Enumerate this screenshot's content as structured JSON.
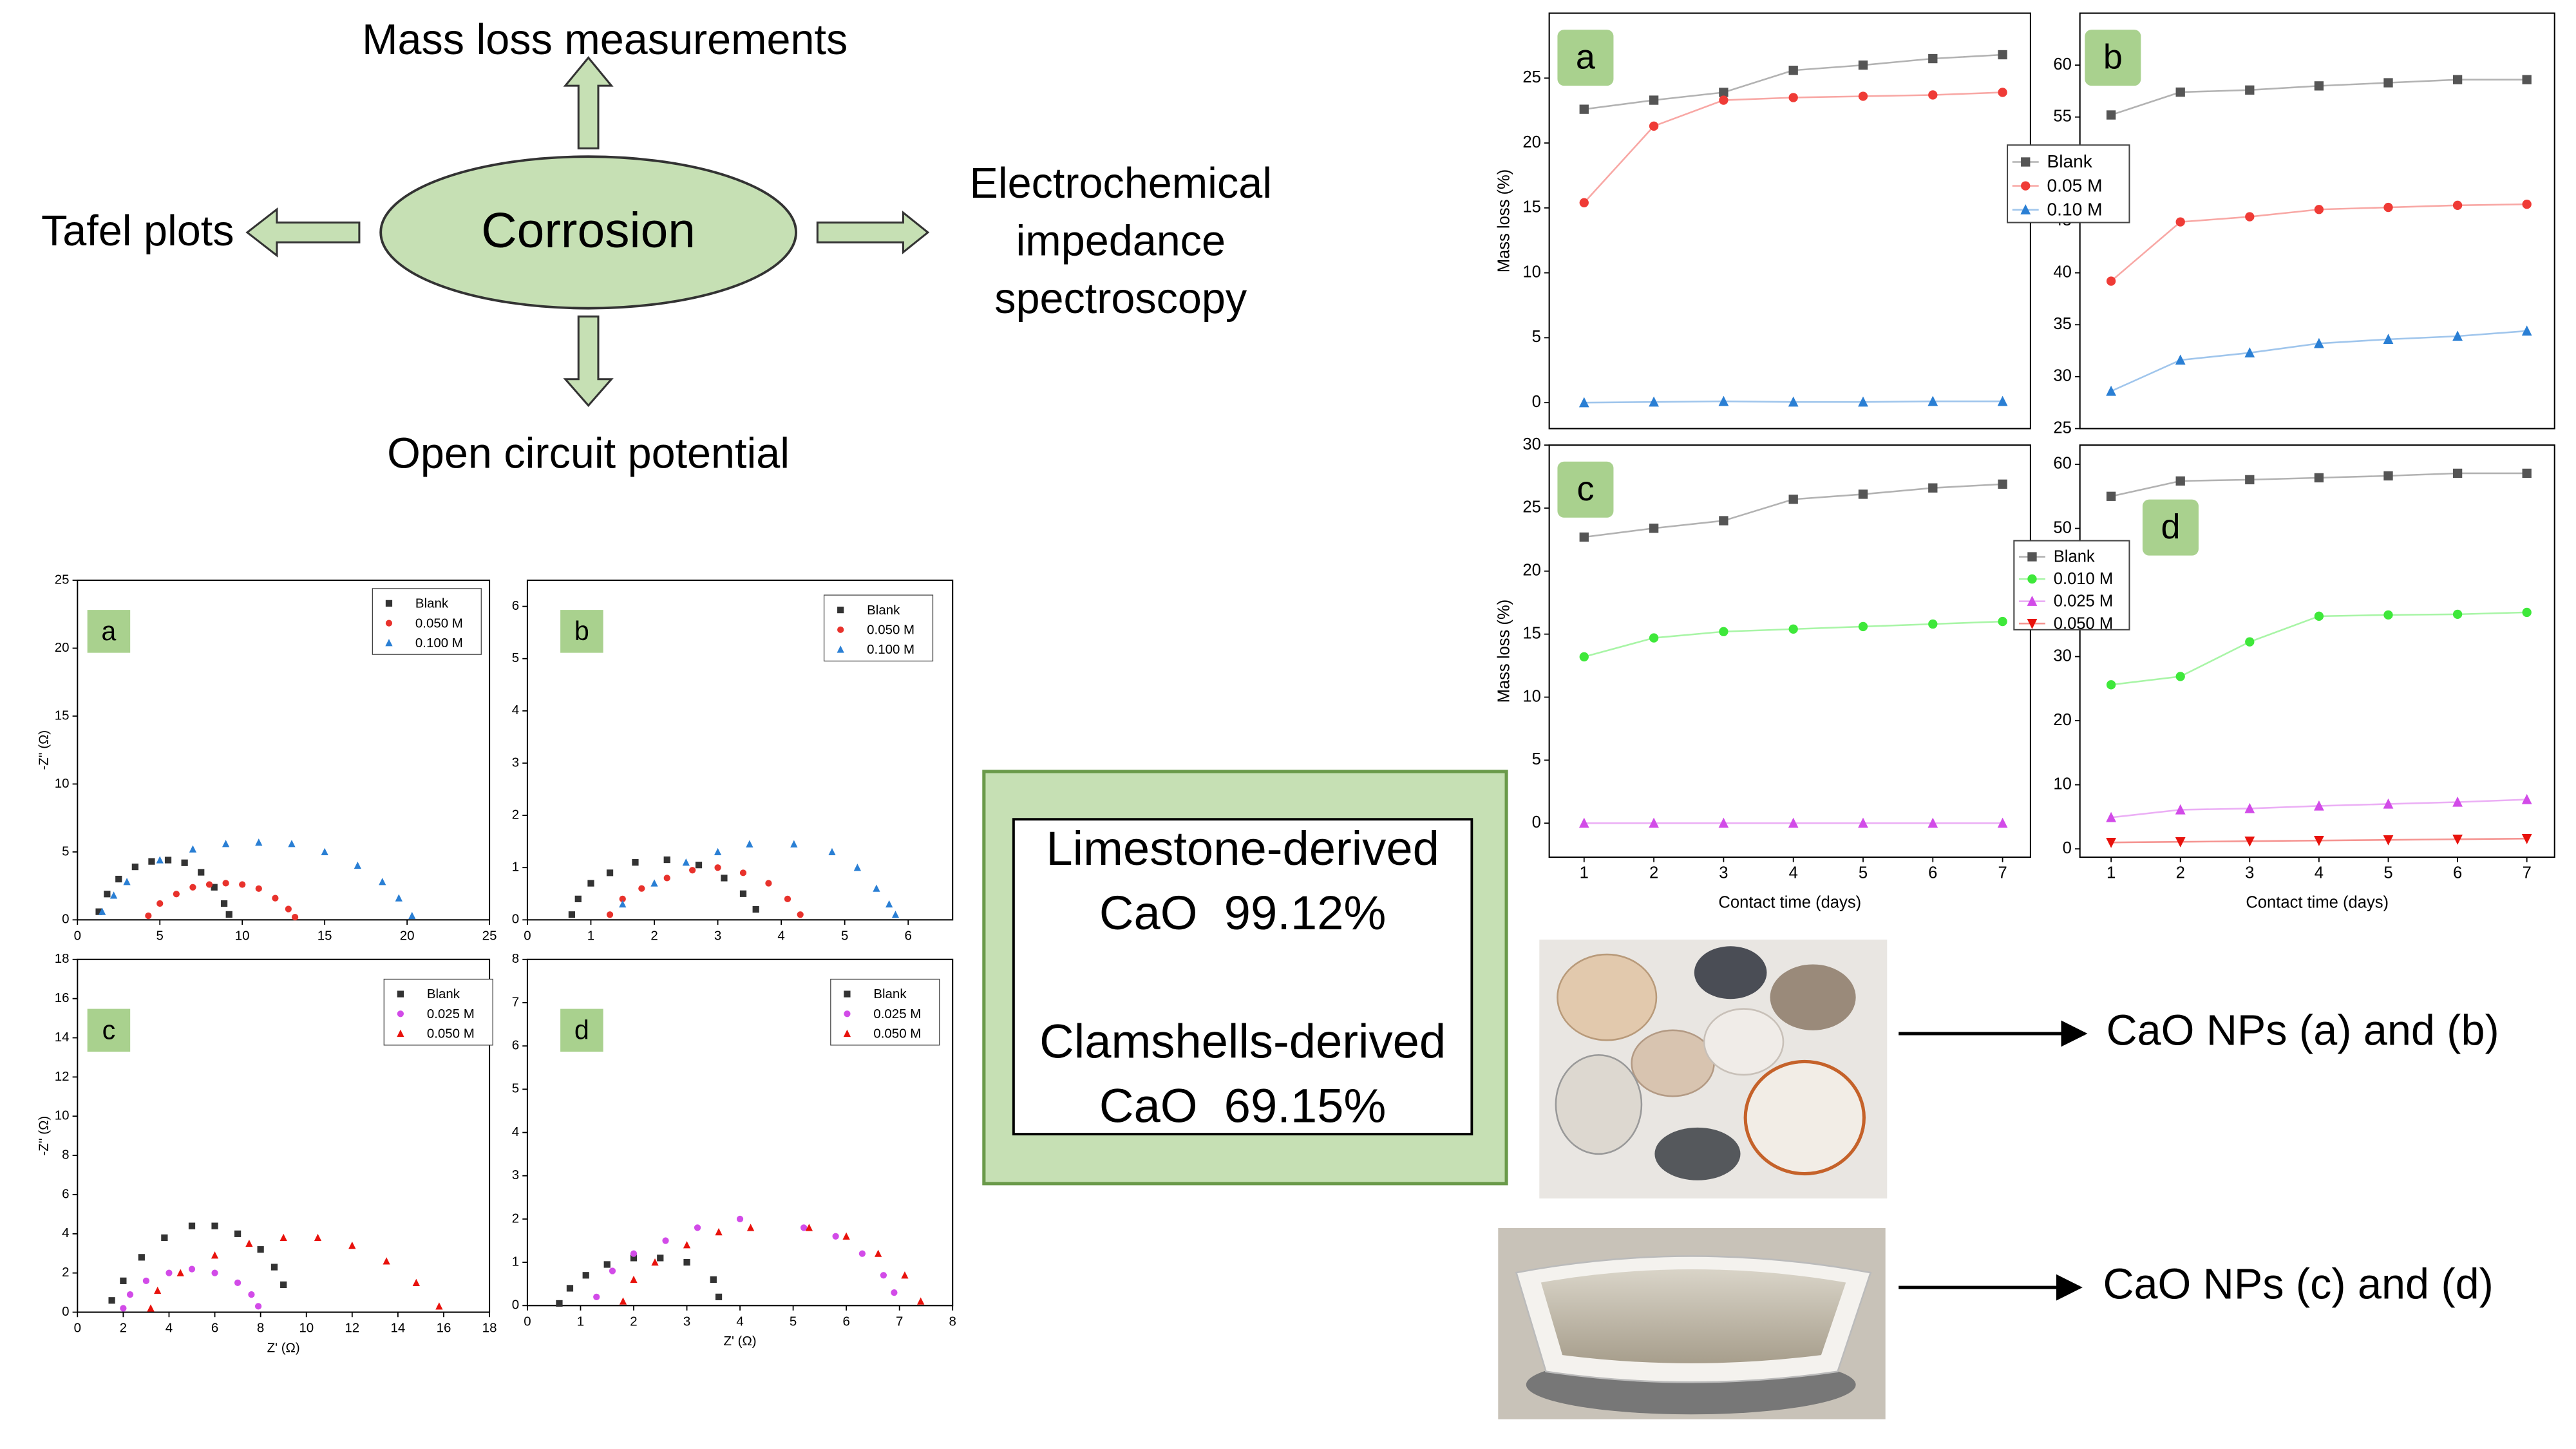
{
  "diagram": {
    "top": "Mass loss measurements",
    "center": "Corrosion",
    "left": "Tafel plots",
    "right": [
      "Electrochemical",
      "impedance",
      "spectroscopy"
    ],
    "bottom": "Open circuit potential"
  },
  "box": {
    "lines": [
      "Limestone-derived",
      "CaO  99.12%",
      "Clamshells-derived",
      "CaO  69.15%"
    ]
  },
  "photos": {
    "outputs": [
      "CaO NPs (a) and (b)",
      "CaO NPs (c) and (d)"
    ]
  },
  "chart_data": [
    {
      "type": "scatter",
      "panel_label": "a",
      "ylabel": "-Z'' (Ω)",
      "xlim": [
        0,
        25
      ],
      "xticks": [
        0,
        5,
        10,
        15,
        20,
        25
      ],
      "ylim": [
        0,
        25
      ],
      "yticks": [
        0,
        5,
        10,
        15,
        20,
        25
      ],
      "legend": "upper right",
      "series": [
        {
          "name": "Blank",
          "color": "#333333",
          "marker": "square",
          "x": [
            1.3,
            1.8,
            2.5,
            3.5,
            4.5,
            5.5,
            6.5,
            7.5,
            8.3,
            8.9,
            9.2
          ],
          "values": [
            0.6,
            1.9,
            3.0,
            3.9,
            4.3,
            4.4,
            4.2,
            3.5,
            2.4,
            1.2,
            0.4
          ]
        },
        {
          "name": "0.050 M",
          "color": "#e8322c",
          "marker": "circle",
          "x": [
            4.3,
            5,
            6,
            7,
            8,
            9,
            10,
            11,
            12,
            12.8,
            13.2
          ],
          "values": [
            0.3,
            1.2,
            1.9,
            2.4,
            2.6,
            2.7,
            2.6,
            2.3,
            1.6,
            0.8,
            0.2
          ]
        },
        {
          "name": "0.100 M",
          "color": "#2a7fd4",
          "marker": "triangle",
          "x": [
            1.5,
            2.2,
            3,
            5,
            7,
            9,
            11,
            13,
            15,
            17,
            18.5,
            19.5,
            20.3
          ],
          "values": [
            0.6,
            1.8,
            2.8,
            4.4,
            5.2,
            5.6,
            5.7,
            5.6,
            5.0,
            4.0,
            2.8,
            1.6,
            0.3
          ]
        }
      ]
    },
    {
      "type": "scatter",
      "panel_label": "b",
      "xlim": [
        0,
        6.7
      ],
      "xticks": [
        0,
        1,
        2,
        3,
        4,
        5,
        6
      ],
      "ylim": [
        0,
        6.5
      ],
      "yticks": [
        0,
        1,
        2,
        3,
        4,
        5,
        6
      ],
      "legend": "upper right",
      "series": [
        {
          "name": "Blank",
          "color": "#333333",
          "marker": "square",
          "x": [
            0.7,
            0.8,
            1,
            1.3,
            1.7,
            2.2,
            2.7,
            3.1,
            3.4,
            3.6
          ],
          "values": [
            0.1,
            0.4,
            0.7,
            0.9,
            1.1,
            1.15,
            1.05,
            0.8,
            0.5,
            0.2
          ]
        },
        {
          "name": "0.050 M",
          "color": "#e8322c",
          "marker": "circle",
          "x": [
            1.3,
            1.5,
            1.8,
            2.2,
            2.6,
            3,
            3.4,
            3.8,
            4.1,
            4.3
          ],
          "values": [
            0.1,
            0.4,
            0.6,
            0.8,
            0.95,
            1.0,
            0.9,
            0.7,
            0.4,
            0.1
          ]
        },
        {
          "name": "0.100 M",
          "color": "#2a7fd4",
          "marker": "triangle",
          "x": [
            1.5,
            2,
            2.5,
            3,
            3.5,
            4.2,
            4.8,
            5.2,
            5.5,
            5.7,
            5.8
          ],
          "values": [
            0.3,
            0.7,
            1.1,
            1.3,
            1.45,
            1.45,
            1.3,
            1.0,
            0.6,
            0.3,
            0.1
          ]
        }
      ]
    },
    {
      "type": "scatter",
      "panel_label": "c",
      "xlabel": "Z' (Ω)",
      "ylabel": "-Z'' (Ω)",
      "xlim": [
        0,
        18
      ],
      "xticks": [
        0,
        2,
        4,
        6,
        8,
        10,
        12,
        14,
        16,
        18
      ],
      "ylim": [
        0,
        18
      ],
      "yticks": [
        0,
        2,
        4,
        6,
        8,
        10,
        12,
        14,
        16,
        18
      ],
      "legend": "upper right",
      "series": [
        {
          "name": "Blank",
          "color": "#333333",
          "marker": "square",
          "x": [
            1.5,
            2,
            2.8,
            3.8,
            5,
            6,
            7,
            8,
            8.6,
            9
          ],
          "values": [
            0.6,
            1.6,
            2.8,
            3.8,
            4.4,
            4.4,
            4.0,
            3.2,
            2.3,
            1.4
          ]
        },
        {
          "name": "0.025 M",
          "color": "#d24be8",
          "marker": "circle",
          "x": [
            2,
            2.3,
            3,
            4,
            5,
            6,
            7,
            7.6,
            7.9
          ],
          "values": [
            0.2,
            0.9,
            1.6,
            2.0,
            2.2,
            2.0,
            1.5,
            0.9,
            0.3
          ]
        },
        {
          "name": "0.050 M",
          "color": "#e8120c",
          "marker": "triangle",
          "x": [
            3.2,
            3.5,
            4.5,
            6,
            7.5,
            9,
            10.5,
            12,
            13.5,
            14.8,
            15.8
          ],
          "values": [
            0.2,
            1.1,
            2.0,
            2.9,
            3.5,
            3.8,
            3.8,
            3.4,
            2.6,
            1.5,
            0.3
          ]
        }
      ]
    },
    {
      "type": "scatter",
      "panel_label": "d",
      "xlabel": "Z' (Ω)",
      "xlim": [
        0,
        8
      ],
      "xticks": [
        0,
        1,
        2,
        3,
        4,
        5,
        6,
        7,
        8
      ],
      "ylim": [
        0,
        8
      ],
      "yticks": [
        0,
        1,
        2,
        3,
        4,
        5,
        6,
        7,
        8
      ],
      "legend": "upper right",
      "series": [
        {
          "name": "Blank",
          "color": "#333333",
          "marker": "square",
          "x": [
            0.6,
            0.8,
            1.1,
            1.5,
            2,
            2.5,
            3,
            3.5,
            3.6
          ],
          "values": [
            0.05,
            0.4,
            0.7,
            0.95,
            1.1,
            1.1,
            1.0,
            0.6,
            0.2
          ]
        },
        {
          "name": "0.025 M",
          "color": "#d24be8",
          "marker": "circle",
          "x": [
            1.3,
            1.6,
            2,
            2.6,
            3.2,
            4,
            5.2,
            5.8,
            6.3,
            6.7,
            6.9
          ],
          "values": [
            0.2,
            0.8,
            1.2,
            1.5,
            1.8,
            2.0,
            1.8,
            1.6,
            1.2,
            0.7,
            0.3
          ]
        },
        {
          "name": "0.050 M",
          "color": "#e8120c",
          "marker": "triangle",
          "x": [
            1.8,
            2,
            2.4,
            3,
            3.6,
            4.2,
            5.3,
            6,
            6.6,
            7.1,
            7.4
          ],
          "values": [
            0.1,
            0.6,
            1.0,
            1.4,
            1.7,
            1.8,
            1.8,
            1.6,
            1.2,
            0.7,
            0.1
          ]
        }
      ]
    },
    {
      "type": "line",
      "panel_label": "a",
      "ylabel": "Mass loss (%)",
      "xlim": [
        0.5,
        7.4
      ],
      "ylim": [
        -2,
        30
      ],
      "yticks": [
        0,
        5,
        10,
        15,
        20,
        25
      ],
      "x": [
        1,
        2,
        3,
        4,
        5,
        6,
        7
      ],
      "series": [
        {
          "name": "Blank",
          "color": "#555555",
          "marker": "square",
          "values": [
            22.6,
            23.3,
            23.9,
            25.6,
            26,
            26.5,
            26.8
          ]
        },
        {
          "name": "0.05 M",
          "color": "#ef3b36",
          "marker": "circle",
          "values": [
            15.4,
            21.3,
            23.3,
            23.5,
            23.6,
            23.7,
            23.9
          ]
        },
        {
          "name": "0.10 M",
          "color": "#2a7fd4",
          "marker": "triangle",
          "values": [
            0,
            0.05,
            0.1,
            0.05,
            0.05,
            0.1,
            0.1
          ]
        }
      ]
    },
    {
      "type": "line",
      "panel_label": "b",
      "xlim": [
        0.55,
        7.4
      ],
      "ylim": [
        25,
        65
      ],
      "yticks": [
        25,
        30,
        35,
        40,
        45,
        50,
        55,
        60
      ],
      "x": [
        1,
        2,
        3,
        4,
        5,
        6,
        7
      ],
      "legend": "upper left",
      "series": [
        {
          "name": "Blank",
          "color": "#555555",
          "marker": "square",
          "values": [
            55.2,
            57.4,
            57.6,
            58,
            58.3,
            58.6,
            58.6
          ]
        },
        {
          "name": "0.05 M",
          "color": "#ef3b36",
          "marker": "circle",
          "values": [
            39.2,
            44.9,
            45.4,
            46.1,
            46.3,
            46.5,
            46.6
          ]
        },
        {
          "name": "0.10 M",
          "color": "#2a7fd4",
          "marker": "triangle",
          "values": [
            28.6,
            31.6,
            32.3,
            33.2,
            33.6,
            33.9,
            34.4
          ]
        }
      ]
    },
    {
      "type": "line",
      "panel_label": "c",
      "ylabel": "Mass loss (%)",
      "xlabel": "Contact time (days)",
      "xlim": [
        0.5,
        7.4
      ],
      "xticks": [
        1,
        2,
        3,
        4,
        5,
        6,
        7
      ],
      "ylim": [
        -2.7,
        30
      ],
      "yticks": [
        0,
        5,
        10,
        15,
        20,
        25,
        30
      ],
      "x": [
        1,
        2,
        3,
        4,
        5,
        6,
        7
      ],
      "series": [
        {
          "name": "Blank",
          "color": "#555555",
          "marker": "square",
          "values": [
            22.7,
            23.4,
            24,
            25.7,
            26.1,
            26.6,
            26.9
          ]
        },
        {
          "name": "0.010 M",
          "color": "#3ee83a",
          "marker": "circle",
          "values": [
            13.2,
            14.7,
            15.2,
            15.4,
            15.6,
            15.8,
            16
          ]
        },
        {
          "name": "0.025 M",
          "color": "#d24be8",
          "marker": "triangle",
          "values": [
            0,
            0,
            0,
            0,
            0,
            0,
            0
          ]
        }
      ]
    },
    {
      "type": "line",
      "panel_label": "d",
      "xlabel": "Contact time (days)",
      "xlim": [
        0.55,
        7.4
      ],
      "xticks": [
        1,
        2,
        3,
        4,
        5,
        6,
        7
      ],
      "ylim": [
        -1.3,
        63
      ],
      "yticks": [
        0,
        10,
        20,
        30,
        40,
        50,
        60
      ],
      "x": [
        1,
        2,
        3,
        4,
        5,
        6,
        7
      ],
      "legend": "upper left",
      "series": [
        {
          "name": "Blank",
          "color": "#555555",
          "marker": "square",
          "values": [
            55,
            57.4,
            57.6,
            57.9,
            58.2,
            58.6,
            58.6
          ]
        },
        {
          "name": "0.010 M",
          "color": "#3ee83a",
          "marker": "circle",
          "values": [
            25.6,
            26.9,
            32.3,
            36.3,
            36.5,
            36.6,
            36.9
          ]
        },
        {
          "name": "0.025 M",
          "color": "#d24be8",
          "marker": "triangle",
          "values": [
            4.9,
            6.1,
            6.3,
            6.7,
            7,
            7.3,
            7.7
          ]
        },
        {
          "name": "0.050 M",
          "color": "#e8120c",
          "marker": "triangle-down",
          "values": [
            1.0,
            1.1,
            1.2,
            1.3,
            1.4,
            1.5,
            1.6
          ]
        }
      ]
    }
  ]
}
